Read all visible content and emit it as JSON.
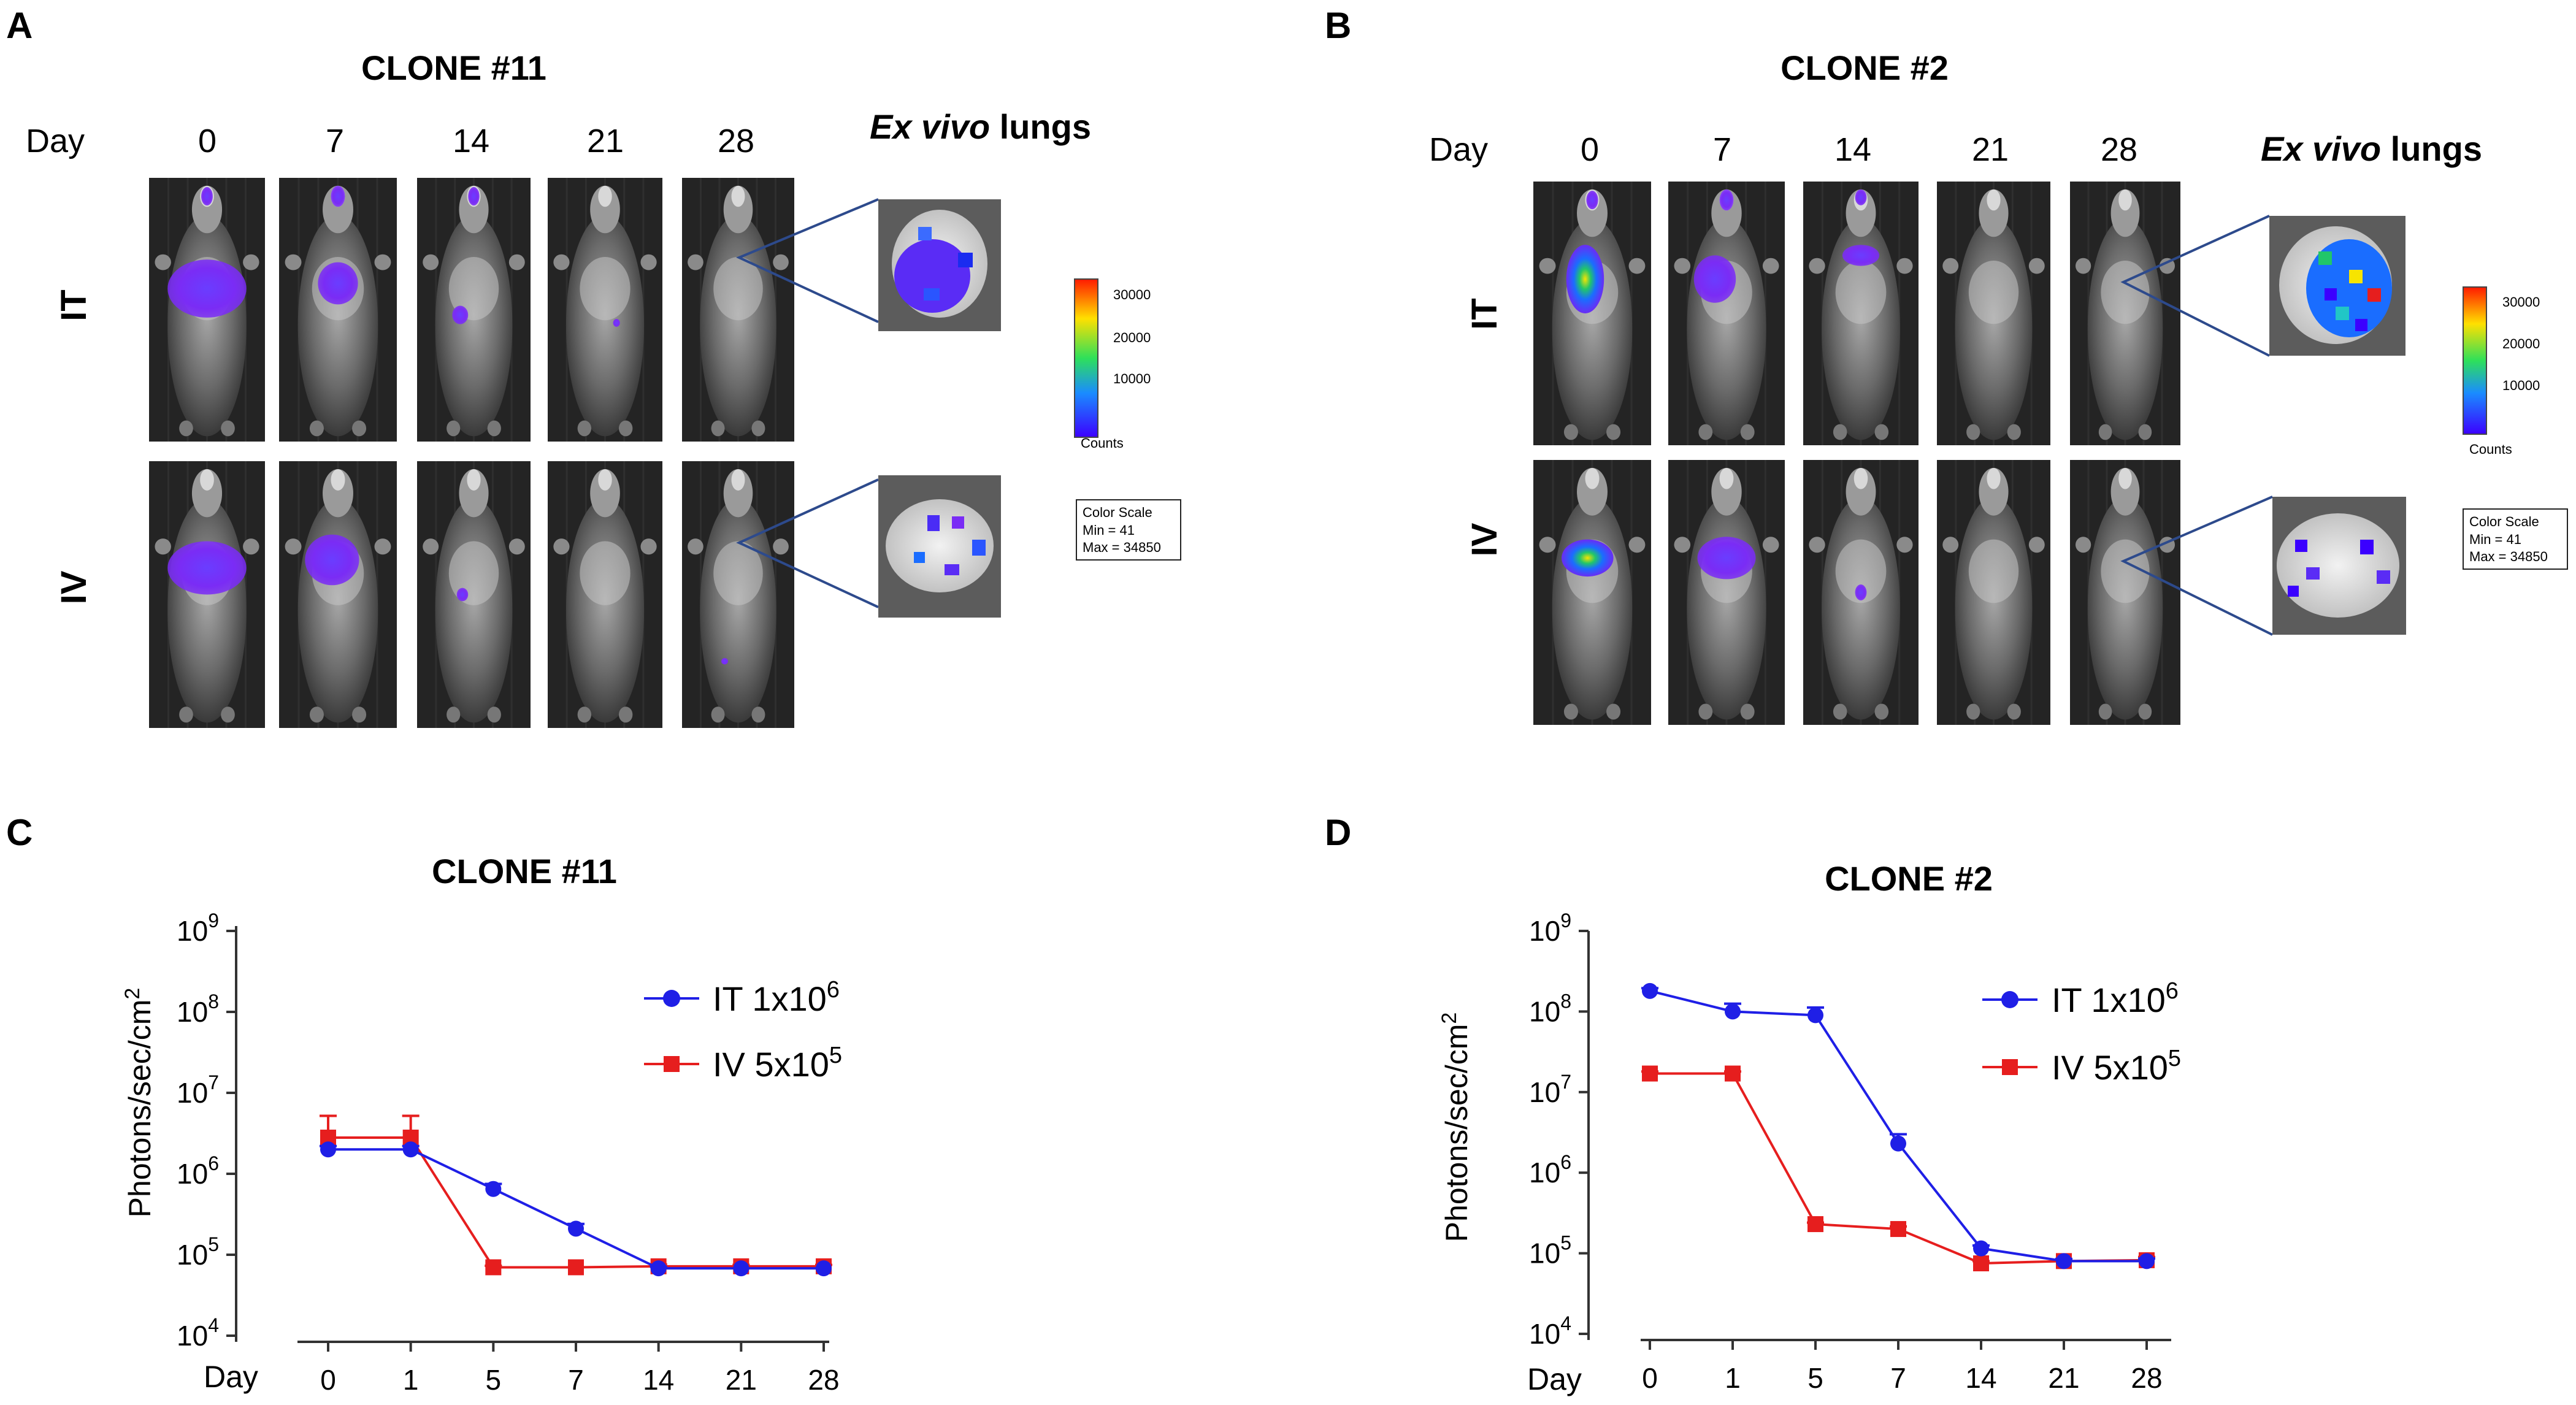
{
  "panels": {
    "A": {
      "letter": "A",
      "title": "CLONE #11",
      "day_label": "Day",
      "days": [
        "0",
        "7",
        "14",
        "21",
        "28"
      ],
      "ex_vivo_em": "Ex vivo",
      "ex_vivo_rest": " lungs",
      "routes": [
        "IT",
        "IV"
      ],
      "colorbar": {
        "ticks": [
          "30000",
          "20000",
          "10000"
        ],
        "unit": "Counts"
      },
      "color_scale": {
        "title": "Color Scale",
        "min": "Min = 41",
        "max": "Max = 34850"
      }
    },
    "B": {
      "letter": "B",
      "title": "CLONE #2",
      "day_label": "Day",
      "days": [
        "0",
        "7",
        "14",
        "21",
        "28"
      ],
      "ex_vivo_em": "Ex vivo",
      "ex_vivo_rest": " lungs",
      "routes": [
        "IT",
        "IV"
      ],
      "colorbar": {
        "ticks": [
          "30000",
          "20000",
          "10000"
        ],
        "unit": "Counts"
      },
      "color_scale": {
        "title": "Color Scale",
        "min": "Min = 41",
        "max": "Max = 34850"
      }
    },
    "C": {
      "letter": "C"
    },
    "D": {
      "letter": "D"
    }
  },
  "chart_data": [
    {
      "id": "C",
      "type": "line",
      "title": "CLONE #11",
      "xlabel": "Day",
      "ylabel": "Photons/sec/cm",
      "ylabel_sup": "2",
      "yscale": "log",
      "ylim": [
        10000,
        1000000000
      ],
      "yticks": [
        {
          "base": "10",
          "exp": "4"
        },
        {
          "base": "10",
          "exp": "5"
        },
        {
          "base": "10",
          "exp": "6"
        },
        {
          "base": "10",
          "exp": "7"
        },
        {
          "base": "10",
          "exp": "8"
        },
        {
          "base": "10",
          "exp": "9"
        }
      ],
      "categories": [
        "0",
        "1",
        "5",
        "7",
        "14",
        "21",
        "28"
      ],
      "series": [
        {
          "name": "IT",
          "legend_main": "IT  1x10",
          "legend_sup": "6",
          "color": "#1f1fe6",
          "marker": "circle",
          "values": [
            2000000,
            2000000,
            650000,
            210000,
            68000,
            68000,
            68000
          ],
          "errors_upper": [
            2200000,
            2200000,
            750000,
            240000,
            71000,
            70000,
            70000
          ]
        },
        {
          "name": "IV",
          "legend_main": "IV  5x10",
          "legend_sup": "5",
          "color": "#e61e1e",
          "marker": "square",
          "values": [
            2800000,
            2800000,
            70000,
            70000,
            72000,
            72000,
            72000
          ],
          "errors_upper": [
            5200000,
            5200000,
            73000,
            72000,
            76000,
            75000,
            75000
          ]
        }
      ]
    },
    {
      "id": "D",
      "type": "line",
      "title": "CLONE #2",
      "xlabel": "Day",
      "ylabel": "Photons/sec/cm",
      "ylabel_sup": "2",
      "yscale": "log",
      "ylim": [
        10000,
        1000000000
      ],
      "yticks": [
        {
          "base": "10",
          "exp": "4"
        },
        {
          "base": "10",
          "exp": "5"
        },
        {
          "base": "10",
          "exp": "6"
        },
        {
          "base": "10",
          "exp": "7"
        },
        {
          "base": "10",
          "exp": "8"
        },
        {
          "base": "10",
          "exp": "9"
        }
      ],
      "categories": [
        "0",
        "1",
        "5",
        "7",
        "14",
        "21",
        "28"
      ],
      "series": [
        {
          "name": "IT",
          "legend_main": "IT  1x10",
          "legend_sup": "6",
          "color": "#1f1fe6",
          "marker": "circle",
          "values": [
            180000000,
            100000000,
            90000000,
            2300000,
            115000,
            80000,
            80000
          ],
          "errors_upper": [
            195000000,
            125000000,
            112000000,
            3000000,
            125000,
            85000,
            86000
          ]
        },
        {
          "name": "IV",
          "legend_main": "IV  5x10",
          "legend_sup": "5",
          "color": "#e61e1e",
          "marker": "square",
          "values": [
            17000000,
            17000000,
            230000,
            200000,
            75000,
            80000,
            82000
          ],
          "errors_upper": [
            18000000,
            18000000,
            240000,
            215000,
            80000,
            84000,
            90000
          ]
        }
      ]
    }
  ]
}
